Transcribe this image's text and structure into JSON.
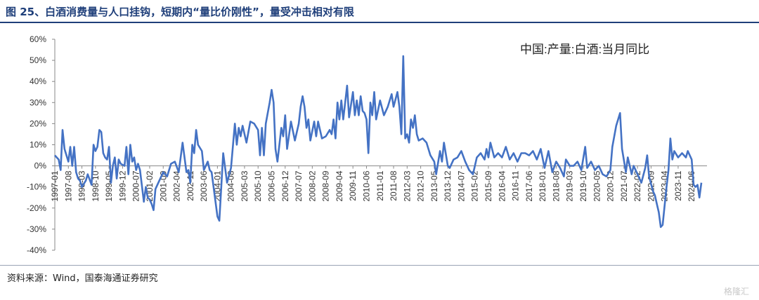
{
  "header": {
    "title": "图 25、白酒消费量与人口挂钩，短期内“量比价刚性”，量受冲击相对有限"
  },
  "footer": {
    "source": "资料来源：Wind，国泰海通证券研究",
    "watermark": "格隆汇"
  },
  "chart_data": {
    "type": "line",
    "title": "",
    "xlabel": "",
    "ylabel": "",
    "ylim": [
      -40,
      60
    ],
    "y_ticks": [
      "-40%",
      "-30%",
      "-20%",
      "-10%",
      "0%",
      "10%",
      "20%",
      "30%",
      "40%",
      "50%",
      "60%"
    ],
    "y_tick_values": [
      -40,
      -30,
      -20,
      -10,
      0,
      10,
      20,
      30,
      40,
      50,
      60
    ],
    "x_ticks": [
      "1997-01",
      "1997-08",
      "1998-03",
      "1998-10",
      "1999-05",
      "1999-12",
      "2000-07",
      "2001-02",
      "2001-09",
      "2002-04",
      "2002-11",
      "2003-06",
      "2004-01",
      "2004-08",
      "2005-03",
      "2005-10",
      "2006-05",
      "2006-12",
      "2007-07",
      "2008-02",
      "2008-09",
      "2009-04",
      "2009-11",
      "2010-06",
      "2011-01",
      "2011-08",
      "2012-03",
      "2012-10",
      "2013-05",
      "2013-12",
      "2014-07",
      "2015-02",
      "2015-09",
      "2016-04",
      "2016-11",
      "2017-06",
      "2018-01",
      "2018-08",
      "2019-03",
      "2019-10",
      "2020-05",
      "2020-12",
      "2021-07",
      "2022-02",
      "2022-09",
      "2023-04",
      "2023-11",
      "2024-06"
    ],
    "grid": false,
    "legend_position": "top-right",
    "line_color": "#4472c4",
    "series": [
      {
        "name": "中国:产量:白酒:当月同比",
        "points": [
          [
            "1997-01",
            5
          ],
          [
            "1997-03",
            3
          ],
          [
            "1997-04",
            -2
          ],
          [
            "1997-05",
            17
          ],
          [
            "1997-06",
            8
          ],
          [
            "1997-08",
            2
          ],
          [
            "1997-09",
            9
          ],
          [
            "1997-10",
            0
          ],
          [
            "1997-11",
            9
          ],
          [
            "1997-12",
            -3
          ],
          [
            "1998-01",
            -6
          ],
          [
            "1998-02",
            -7
          ],
          [
            "1998-03",
            -10
          ],
          [
            "1998-05",
            -7
          ],
          [
            "1998-06",
            -4
          ],
          [
            "1998-08",
            -9
          ],
          [
            "1998-09",
            10
          ],
          [
            "1998-10",
            7
          ],
          [
            "1998-11",
            9
          ],
          [
            "1998-12",
            17
          ],
          [
            "1999-01",
            16
          ],
          [
            "1999-02",
            6
          ],
          [
            "1999-03",
            4
          ],
          [
            "1999-04",
            3
          ],
          [
            "1999-05",
            9
          ],
          [
            "1999-06",
            -8
          ],
          [
            "1999-07",
            0
          ],
          [
            "1999-08",
            4
          ],
          [
            "1999-09",
            -6
          ],
          [
            "1999-10",
            3
          ],
          [
            "1999-11",
            1
          ],
          [
            "2000-01",
            0
          ],
          [
            "2000-02",
            9
          ],
          [
            "2000-03",
            -4
          ],
          [
            "2000-04",
            10
          ],
          [
            "2000-05",
            2
          ],
          [
            "2000-06",
            4
          ],
          [
            "2000-07",
            -2
          ],
          [
            "2000-08",
            1
          ],
          [
            "2000-09",
            -2
          ],
          [
            "2000-11",
            -17
          ],
          [
            "2000-12",
            -10
          ],
          [
            "2001-01",
            -15
          ],
          [
            "2001-02",
            -16
          ],
          [
            "2001-03",
            -18
          ],
          [
            "2001-04",
            -21
          ],
          [
            "2001-05",
            -11
          ],
          [
            "2001-07",
            -7
          ],
          [
            "2001-09",
            -3
          ],
          [
            "2001-11",
            -5
          ],
          [
            "2002-01",
            1
          ],
          [
            "2002-03",
            2
          ],
          [
            "2002-05",
            -3
          ],
          [
            "2002-07",
            11
          ],
          [
            "2002-09",
            -3
          ],
          [
            "2002-10",
            -2
          ],
          [
            "2002-11",
            -8
          ],
          [
            "2002-12",
            10
          ],
          [
            "2003-01",
            6
          ],
          [
            "2003-02",
            17
          ],
          [
            "2003-03",
            10
          ],
          [
            "2003-05",
            7
          ],
          [
            "2003-06",
            -2
          ],
          [
            "2003-08",
            2
          ],
          [
            "2003-09",
            -2
          ],
          [
            "2003-10",
            -3
          ],
          [
            "2004-01",
            -24
          ],
          [
            "2004-02",
            -26
          ],
          [
            "2004-04",
            6
          ],
          [
            "2004-06",
            -8
          ],
          [
            "2004-08",
            -1
          ],
          [
            "2004-10",
            20
          ],
          [
            "2004-11",
            10
          ],
          [
            "2004-12",
            18
          ],
          [
            "2005-01",
            14
          ],
          [
            "2005-02",
            19
          ],
          [
            "2005-04",
            11
          ],
          [
            "2005-06",
            21
          ],
          [
            "2005-08",
            20
          ],
          [
            "2005-10",
            17
          ],
          [
            "2005-11",
            5
          ],
          [
            "2005-12",
            18
          ],
          [
            "2006-01",
            5
          ],
          [
            "2006-02",
            20
          ],
          [
            "2006-04",
            30
          ],
          [
            "2006-05",
            36
          ],
          [
            "2006-06",
            30
          ],
          [
            "2006-07",
            8
          ],
          [
            "2006-08",
            2
          ],
          [
            "2006-10",
            18
          ],
          [
            "2006-11",
            14
          ],
          [
            "2006-12",
            24
          ],
          [
            "2007-01",
            8
          ],
          [
            "2007-03",
            21
          ],
          [
            "2007-05",
            12
          ],
          [
            "2007-07",
            20
          ],
          [
            "2007-08",
            28
          ],
          [
            "2007-09",
            33
          ],
          [
            "2007-10",
            28
          ],
          [
            "2007-11",
            18
          ],
          [
            "2007-12",
            22
          ],
          [
            "2008-01",
            12
          ],
          [
            "2008-03",
            21
          ],
          [
            "2008-04",
            14
          ],
          [
            "2008-05",
            21
          ],
          [
            "2008-07",
            13
          ],
          [
            "2008-09",
            14
          ],
          [
            "2008-11",
            17
          ],
          [
            "2008-12",
            15
          ],
          [
            "2009-01",
            22
          ],
          [
            "2009-02",
            13
          ],
          [
            "2009-03",
            30
          ],
          [
            "2009-04",
            22
          ],
          [
            "2009-05",
            31
          ],
          [
            "2009-06",
            22
          ],
          [
            "2009-08",
            38
          ],
          [
            "2009-09",
            23
          ],
          [
            "2009-11",
            35
          ],
          [
            "2009-12",
            24
          ],
          [
            "2010-01",
            31
          ],
          [
            "2010-02",
            24
          ],
          [
            "2010-03",
            33
          ],
          [
            "2010-04",
            26
          ],
          [
            "2010-05",
            25
          ],
          [
            "2010-06",
            22
          ],
          [
            "2010-07",
            6
          ],
          [
            "2010-08",
            30
          ],
          [
            "2010-09",
            24
          ],
          [
            "2010-10",
            35
          ],
          [
            "2010-11",
            22
          ],
          [
            "2011-01",
            31
          ],
          [
            "2011-03",
            24
          ],
          [
            "2011-05",
            28
          ],
          [
            "2011-07",
            34
          ],
          [
            "2011-08",
            28
          ],
          [
            "2011-10",
            35
          ],
          [
            "2011-11",
            28
          ],
          [
            "2011-12",
            15
          ],
          [
            "2012-01",
            52
          ],
          [
            "2012-02",
            13
          ],
          [
            "2012-03",
            15
          ],
          [
            "2012-04",
            11
          ],
          [
            "2012-05",
            22
          ],
          [
            "2012-06",
            18
          ],
          [
            "2012-07",
            24
          ],
          [
            "2012-08",
            15
          ],
          [
            "2012-09",
            12
          ],
          [
            "2012-11",
            13
          ],
          [
            "2013-01",
            11
          ],
          [
            "2013-03",
            5
          ],
          [
            "2013-05",
            2
          ],
          [
            "2013-06",
            -4
          ],
          [
            "2013-08",
            7
          ],
          [
            "2013-09",
            2
          ],
          [
            "2013-10",
            11
          ],
          [
            "2013-12",
            0
          ],
          [
            "2014-01",
            -1
          ],
          [
            "2014-03",
            3
          ],
          [
            "2014-05",
            4
          ],
          [
            "2014-07",
            7
          ],
          [
            "2014-09",
            2
          ],
          [
            "2014-11",
            -2
          ],
          [
            "2015-01",
            -4
          ],
          [
            "2015-03",
            4
          ],
          [
            "2015-05",
            6
          ],
          [
            "2015-07",
            3
          ],
          [
            "2015-08",
            8
          ],
          [
            "2015-09",
            4
          ],
          [
            "2015-10",
            11
          ],
          [
            "2015-12",
            4
          ],
          [
            "2016-02",
            6
          ],
          [
            "2016-04",
            4
          ],
          [
            "2016-06",
            9
          ],
          [
            "2016-08",
            3
          ],
          [
            "2016-10",
            6
          ],
          [
            "2016-12",
            2
          ],
          [
            "2017-02",
            6
          ],
          [
            "2017-04",
            6
          ],
          [
            "2017-06",
            5
          ],
          [
            "2017-08",
            7
          ],
          [
            "2017-10",
            3
          ],
          [
            "2017-12",
            8
          ],
          [
            "2018-02",
            -1
          ],
          [
            "2018-04",
            7
          ],
          [
            "2018-06",
            -3
          ],
          [
            "2018-08",
            2
          ],
          [
            "2018-10",
            -1
          ],
          [
            "2018-12",
            -5
          ],
          [
            "2019-01",
            3
          ],
          [
            "2019-03",
            0
          ],
          [
            "2019-05",
            0
          ],
          [
            "2019-07",
            2
          ],
          [
            "2019-09",
            -2
          ],
          [
            "2019-11",
            9
          ],
          [
            "2019-12",
            -1
          ],
          [
            "2020-02",
            2
          ],
          [
            "2020-04",
            -2
          ],
          [
            "2020-06",
            0
          ],
          [
            "2020-08",
            -4
          ],
          [
            "2020-10",
            -5
          ],
          [
            "2020-12",
            -2
          ],
          [
            "2021-01",
            9
          ],
          [
            "2021-03",
            19
          ],
          [
            "2021-05",
            25
          ],
          [
            "2021-06",
            8
          ],
          [
            "2021-08",
            -3
          ],
          [
            "2021-09",
            4
          ],
          [
            "2021-11",
            -4
          ],
          [
            "2021-12",
            0
          ],
          [
            "2022-02",
            -4
          ],
          [
            "2022-04",
            -8
          ],
          [
            "2022-06",
            -1
          ],
          [
            "2022-07",
            5
          ],
          [
            "2022-08",
            -5
          ],
          [
            "2022-10",
            -12
          ],
          [
            "2022-11",
            -14
          ],
          [
            "2022-12",
            -18
          ],
          [
            "2023-01",
            -22
          ],
          [
            "2023-02",
            -29
          ],
          [
            "2023-03",
            -28
          ],
          [
            "2023-05",
            -10
          ],
          [
            "2023-06",
            -2
          ],
          [
            "2023-07",
            13
          ],
          [
            "2023-08",
            3
          ],
          [
            "2023-09",
            7
          ],
          [
            "2023-11",
            4
          ],
          [
            "2024-01",
            6
          ],
          [
            "2024-03",
            4
          ],
          [
            "2024-04",
            7
          ],
          [
            "2024-06",
            3
          ],
          [
            "2024-07",
            -9
          ],
          [
            "2024-08",
            -10
          ],
          [
            "2024-09",
            -9
          ],
          [
            "2024-10",
            -15
          ],
          [
            "2024-11",
            -8
          ]
        ]
      }
    ]
  }
}
